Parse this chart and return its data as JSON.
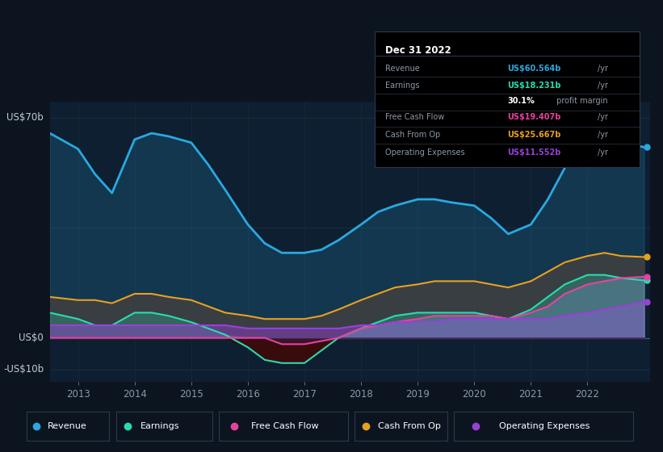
{
  "bg_color": "#0c1420",
  "plot_bg_color": "#0d1f30",
  "ylabel_70": "US$70b",
  "ylabel_0": "US$0",
  "ylabel_neg10": "-US$10b",
  "years": [
    2012.5,
    2013.0,
    2013.3,
    2013.6,
    2014.0,
    2014.3,
    2014.6,
    2015.0,
    2015.3,
    2015.6,
    2016.0,
    2016.3,
    2016.6,
    2017.0,
    2017.3,
    2017.6,
    2018.0,
    2018.3,
    2018.6,
    2019.0,
    2019.3,
    2019.6,
    2020.0,
    2020.3,
    2020.6,
    2021.0,
    2021.3,
    2021.6,
    2022.0,
    2022.3,
    2022.6,
    2023.0
  ],
  "revenue": [
    65,
    60,
    52,
    46,
    63,
    65,
    64,
    62,
    55,
    47,
    36,
    30,
    27,
    27,
    28,
    31,
    36,
    40,
    42,
    44,
    44,
    43,
    42,
    38,
    33,
    36,
    44,
    54,
    62,
    65,
    62,
    60.564
  ],
  "earnings": [
    8,
    6,
    4,
    4,
    8,
    8,
    7,
    5,
    3,
    1,
    -3,
    -7,
    -8,
    -8,
    -4,
    0,
    3,
    5,
    7,
    8,
    8,
    8,
    8,
    7,
    6,
    9,
    13,
    17,
    20,
    20,
    19,
    18.231
  ],
  "free_cash_flow": [
    0,
    0,
    0,
    0,
    0,
    0,
    0,
    0,
    0,
    0,
    0,
    0,
    -2,
    -2,
    -1,
    0,
    3,
    4,
    5,
    6,
    7,
    7,
    7,
    7,
    6,
    8,
    10,
    14,
    17,
    18,
    19,
    19.407
  ],
  "cash_from_op": [
    13,
    12,
    12,
    11,
    14,
    14,
    13,
    12,
    10,
    8,
    7,
    6,
    6,
    6,
    7,
    9,
    12,
    14,
    16,
    17,
    18,
    18,
    18,
    17,
    16,
    18,
    21,
    24,
    26,
    27,
    26,
    25.667
  ],
  "operating_expenses": [
    4,
    4,
    4,
    4,
    4,
    4,
    4,
    4,
    4,
    4,
    3,
    3,
    3,
    3,
    3,
    3,
    4,
    4,
    5,
    5,
    5,
    6,
    6,
    6,
    6,
    6,
    6,
    7,
    8,
    9,
    10,
    11.552
  ],
  "revenue_color": "#2aa8e0",
  "earnings_color": "#2adab0",
  "free_cash_flow_color": "#e840a0",
  "cash_from_op_color": "#e8a020",
  "operating_expenses_color": "#9840d8",
  "xticks": [
    2013,
    2014,
    2015,
    2016,
    2017,
    2018,
    2019,
    2020,
    2021,
    2022
  ],
  "info_date": "Dec 31 2022",
  "legend_items": [
    {
      "label": "Revenue",
      "color": "#2aa8e0"
    },
    {
      "label": "Earnings",
      "color": "#2adab0"
    },
    {
      "label": "Free Cash Flow",
      "color": "#e840a0"
    },
    {
      "label": "Cash From Op",
      "color": "#e8a020"
    },
    {
      "label": "Operating Expenses",
      "color": "#9840d8"
    }
  ]
}
